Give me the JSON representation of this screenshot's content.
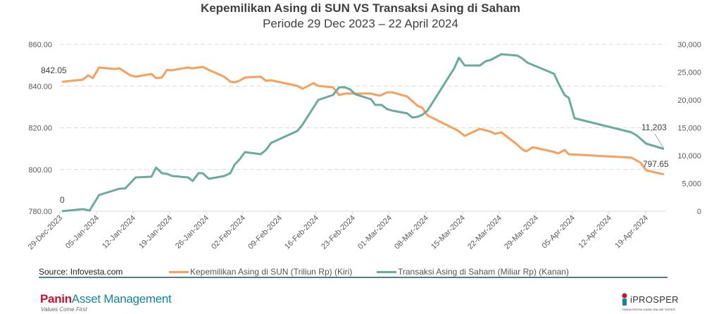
{
  "chart_data": {
    "type": "line",
    "title": "Kepemilikan Asing di SUN VS Transaksi Asing di Saham",
    "subtitle": "Periode 29 Dec 2023 – 22 April 2024",
    "x_unit": "days since 29-Dec-2023",
    "xlim": [
      0,
      115.5
    ],
    "x_tick_days": [
      0,
      7,
      14,
      21,
      28,
      35,
      42,
      49,
      56,
      63,
      70,
      77,
      84,
      91,
      98,
      105,
      112
    ],
    "x_tick_labels": [
      "29-Dec-2023",
      "05-Jan-2024",
      "12-Jan-2024",
      "19-Jan-2024",
      "26-Jan-2024",
      "02-Feb-2024",
      "09-Feb-2024",
      "16-Feb-2024",
      "23-Feb-2024",
      "01-Mar-2024",
      "08-Mar-2024",
      "15-Mar-2024",
      "22-Mar-2024",
      "29-Mar-2024",
      "05-Apr-2024",
      "12-Apr-2024",
      "19-Apr-2024"
    ],
    "y_left": {
      "ylim": [
        780,
        860
      ],
      "ticks": [
        "780.00",
        "800.00",
        "820.00",
        "840.00",
        "860.00"
      ],
      "tick_values": [
        780,
        800,
        820,
        840,
        860
      ]
    },
    "y_right": {
      "ylim": [
        0,
        30000
      ],
      "ticks": [
        "0",
        "5,000",
        "10,000",
        "15,000",
        "20,000",
        "25,000",
        "30,000"
      ],
      "tick_values": [
        0,
        5000,
        10000,
        15000,
        20000,
        25000,
        30000
      ]
    },
    "grid": "horizontal dashed",
    "legend_placement": "bottom",
    "series": [
      {
        "name": "Kepemilikan Asing di SUN (Triliun Rp) (Kiri)",
        "axis": "left",
        "color": "#F7A05E",
        "x": [
          0.4,
          4.4,
          5.4,
          6.3,
          7.5,
          10.5,
          11.4,
          13.5,
          14.5,
          17.5,
          18.4,
          19.5,
          20.5,
          21.3,
          24.5,
          25.3,
          27.3,
          28.7,
          31.4,
          32.6,
          33.4,
          34.3,
          35.4,
          38.4,
          39.4,
          40.4,
          45.4,
          46.4,
          48.5,
          49.4,
          52.2,
          53.4,
          54.5,
          59.5,
          61.2,
          62.6,
          63.5,
          66.4,
          67.6,
          68.4,
          69.3,
          70.3,
          76.0,
          77.4,
          80.3,
          82.4,
          83.2,
          84.4,
          87.2,
          88.4,
          89.2,
          90.4,
          94.5,
          95.3,
          96.5,
          97.3,
          109.3,
          111.0,
          112.1,
          115.5
        ],
        "values": [
          842.05,
          843.1,
          845.1,
          843.8,
          848.9,
          848.2,
          848.5,
          845.1,
          844.5,
          845.8,
          843.8,
          844.1,
          847.8,
          847.5,
          848.9,
          848.5,
          849.2,
          847.5,
          844.5,
          842.1,
          841.8,
          842.5,
          844.1,
          844.5,
          842.5,
          842.8,
          840.1,
          838.7,
          841.4,
          840.1,
          839.4,
          835.7,
          836.4,
          836.4,
          835.4,
          837.0,
          837.0,
          835.0,
          832.3,
          830.6,
          829.6,
          825.9,
          818.8,
          816.1,
          819.5,
          818.1,
          817.1,
          817.8,
          812.4,
          809.7,
          808.7,
          810.7,
          808.4,
          807.7,
          809.4,
          807.3,
          805.7,
          803.3,
          799.6,
          797.65
        ]
      },
      {
        "name": "Transaksi Asing di Saham (Miliar Rp) (Kanan)",
        "axis": "right",
        "color": "#6AAB9C",
        "x": [
          0.4,
          4.4,
          5.7,
          7.5,
          11.4,
          12.5,
          14.5,
          17.5,
          18.4,
          19.5,
          20.5,
          21.5,
          24.5,
          25.4,
          26.5,
          27.3,
          28.5,
          31.4,
          32.6,
          33.4,
          34.3,
          35.4,
          38.4,
          39.4,
          40.4,
          45.4,
          46.4,
          49.4,
          52.2,
          53.4,
          54.5,
          55.5,
          56.5,
          59.5,
          60.3,
          61.5,
          62.6,
          63.5,
          66.4,
          67.4,
          68.4,
          69.3,
          70.3,
          75.4,
          76.3,
          77.4,
          80.3,
          81.4,
          82.4,
          84.4,
          87.5,
          88.4,
          89.4,
          94.5,
          95.3,
          96.5,
          97.3,
          98.4,
          109.3,
          110.4,
          112.1,
          115.5
        ],
        "values": [
          0,
          380,
          130,
          2910,
          4050,
          4100,
          6080,
          6200,
          7850,
          6840,
          6710,
          6330,
          6080,
          5440,
          6840,
          6840,
          5820,
          6330,
          6840,
          8350,
          9240,
          10630,
          10250,
          11010,
          12280,
          14430,
          15570,
          20000,
          20890,
          22280,
          22280,
          21900,
          21020,
          20130,
          19120,
          19120,
          18360,
          18100,
          17600,
          16840,
          16970,
          17340,
          18100,
          25700,
          27600,
          26200,
          26200,
          26970,
          27220,
          28230,
          27980,
          27470,
          26710,
          24690,
          23040,
          20890,
          20380,
          16710,
          14180,
          13550,
          12150,
          11203
        ]
      }
    ],
    "annotations": [
      {
        "series": 0,
        "point": "first",
        "text": "842.05"
      },
      {
        "series": 1,
        "point": "first",
        "text": "0"
      },
      {
        "series": 1,
        "point": "last",
        "text": "11,203"
      },
      {
        "series": 0,
        "point": "last",
        "text": "797.65"
      }
    ]
  },
  "footer": {
    "source": "Source: Infovesta.com",
    "brand_panin": "Panin",
    "brand_am": "Asset Management",
    "tagline": "Values Come First",
    "iprosper": "iPROSPER",
    "iprosper_sub": "PANIN REKSA DANA ONLINE SUPER"
  }
}
